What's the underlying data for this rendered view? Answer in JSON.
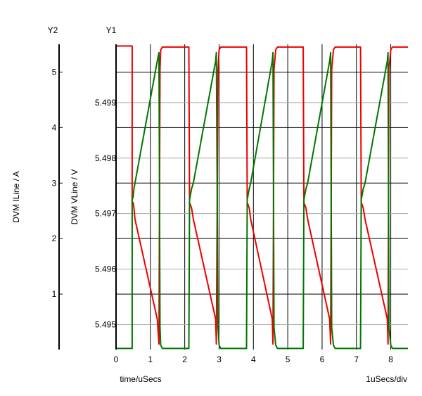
{
  "chart_data": {
    "type": "line",
    "xlabel": "time/uSecs",
    "x_units_label": "1uSecs/div",
    "xlim": [
      0,
      8.5
    ],
    "x_ticks": [
      "0",
      "1",
      "2",
      "3",
      "4",
      "5",
      "6",
      "7",
      "8"
    ],
    "grid": true,
    "y1": {
      "axis_title": "Y1",
      "label": "DVM VLine / V",
      "ylim": [
        5.49455,
        5.50005
      ],
      "ticks": [
        "5.495",
        "5.496",
        "5.497",
        "5.498",
        "5.499"
      ],
      "tick_values": [
        5.495,
        5.496,
        5.497,
        5.498,
        5.499
      ]
    },
    "y2": {
      "axis_title": "Y2",
      "label": "DVM ILine / A",
      "ylim": [
        0,
        5.5
      ],
      "ticks": [
        "1",
        "2",
        "3",
        "4",
        "5"
      ],
      "tick_values": [
        1,
        2,
        3,
        4,
        5
      ]
    },
    "series": [
      {
        "axis": "y1",
        "color": "#ee0000",
        "x": [
          0,
          0.47,
          0.47,
          0.5,
          0.52,
          0.55,
          1.2,
          1.25,
          1.28,
          1.3,
          1.35,
          2.12,
          2.14,
          2.2,
          2.25,
          2.9,
          2.92,
          2.97,
          3.0,
          3.05,
          3.8,
          3.82,
          3.88,
          3.92,
          4.55,
          4.57,
          4.6,
          4.65,
          4.7,
          5.45,
          5.47,
          5.53,
          5.58,
          6.22,
          6.25,
          6.28,
          6.33,
          6.38,
          7.12,
          7.14,
          7.2,
          7.25,
          7.9,
          7.92,
          7.95,
          8.0,
          8.05,
          8.5
        ],
        "values": [
          5.50002,
          5.50002,
          5.49715,
          5.4972,
          5.4971,
          5.4969,
          5.4951,
          5.49465,
          5.4996,
          5.49995,
          5.5,
          5.5,
          5.4972,
          5.4971,
          5.4969,
          5.4951,
          5.49465,
          5.4996,
          5.49995,
          5.5,
          5.5,
          5.4972,
          5.4971,
          5.4969,
          5.4951,
          5.49465,
          5.4996,
          5.49995,
          5.5,
          5.5,
          5.4972,
          5.4971,
          5.4969,
          5.4951,
          5.49465,
          5.4996,
          5.49995,
          5.5,
          5.5,
          5.4972,
          5.4971,
          5.4969,
          5.4951,
          5.49465,
          5.4996,
          5.49995,
          5.5,
          5.5
        ]
      },
      {
        "axis": "y2",
        "color": "#007700",
        "x": [
          0,
          0.47,
          0.47,
          0.5,
          0.52,
          0.55,
          1.2,
          1.25,
          1.28,
          1.3,
          1.35,
          2.12,
          2.14,
          2.2,
          2.25,
          2.9,
          2.92,
          2.97,
          3.0,
          3.05,
          3.8,
          3.82,
          3.88,
          3.92,
          4.55,
          4.57,
          4.6,
          4.65,
          4.7,
          5.45,
          5.47,
          5.53,
          5.58,
          6.22,
          6.25,
          6.28,
          6.33,
          6.38,
          7.12,
          7.14,
          7.2,
          7.25,
          7.9,
          7.92,
          7.95,
          8.0,
          8.05,
          8.5
        ],
        "values": [
          0.02,
          0.02,
          2.7,
          2.75,
          2.9,
          3.0,
          5.2,
          5.35,
          0.4,
          0.08,
          0.02,
          0.02,
          2.7,
          2.9,
          3.0,
          5.2,
          5.35,
          0.4,
          0.08,
          0.02,
          0.02,
          2.7,
          2.9,
          3.0,
          5.2,
          5.35,
          0.4,
          0.08,
          0.02,
          0.02,
          2.7,
          2.9,
          3.0,
          5.2,
          5.35,
          0.4,
          0.08,
          0.02,
          0.02,
          2.7,
          2.9,
          3.0,
          5.2,
          5.35,
          0.4,
          0.08,
          0.02,
          0.02
        ]
      }
    ]
  }
}
